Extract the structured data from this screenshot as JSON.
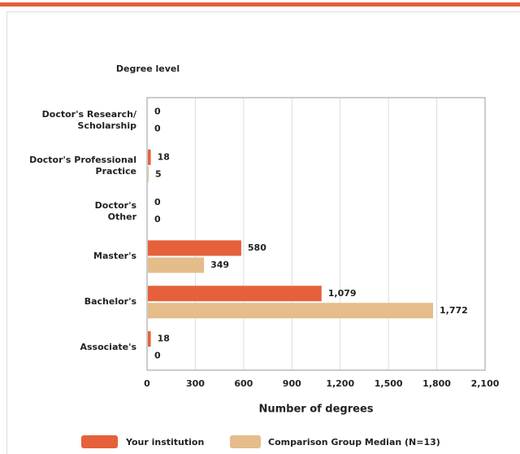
{
  "chart_data": {
    "type": "bar",
    "orientation": "horizontal",
    "y_axis_title": "Degree level",
    "x_axis_title": "Number of degrees",
    "categories": [
      "Doctor's Research/\nScholarship",
      "Doctor's Professional\nPractice",
      "Doctor's\nOther",
      "Master's",
      "Bachelor's",
      "Associate's"
    ],
    "series": [
      {
        "name": "Your institution",
        "color": "#e5603b",
        "values": [
          0,
          18,
          0,
          580,
          1079,
          18
        ],
        "value_labels": [
          "0",
          "18",
          "0",
          "580",
          "1,079",
          "18"
        ]
      },
      {
        "name": "Comparison Group Median (N=13)",
        "color": "#e4bd8b",
        "values": [
          0,
          5,
          0,
          349,
          1772,
          0
        ],
        "value_labels": [
          "0",
          "5",
          "0",
          "349",
          "1,772",
          "0"
        ]
      }
    ],
    "xlim": [
      0,
      2100
    ],
    "xticks": [
      0,
      300,
      600,
      900,
      {
        "value": 1200,
        "label": "1,200"
      },
      {
        "value": 1500,
        "label": "1,500"
      },
      {
        "value": 1800,
        "label": "1,800"
      },
      {
        "value": 2100,
        "label": "2,100"
      }
    ],
    "grid": true,
    "legend": "bottom"
  }
}
